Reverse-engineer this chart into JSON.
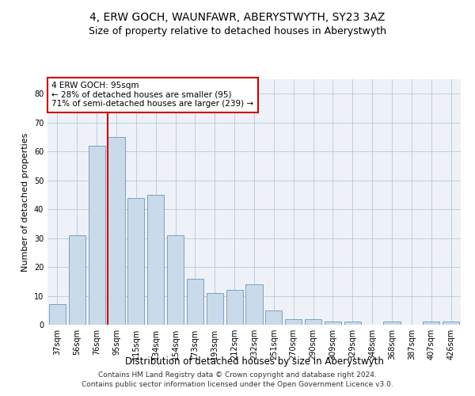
{
  "title": "4, ERW GOCH, WAUNFAWR, ABERYSTWYTH, SY23 3AZ",
  "subtitle": "Size of property relative to detached houses in Aberystwyth",
  "xlabel": "Distribution of detached houses by size in Aberystwyth",
  "ylabel": "Number of detached properties",
  "categories": [
    "37sqm",
    "56sqm",
    "76sqm",
    "95sqm",
    "115sqm",
    "134sqm",
    "154sqm",
    "173sqm",
    "193sqm",
    "212sqm",
    "232sqm",
    "251sqm",
    "270sqm",
    "290sqm",
    "309sqm",
    "329sqm",
    "348sqm",
    "368sqm",
    "387sqm",
    "407sqm",
    "426sqm"
  ],
  "values": [
    7,
    31,
    62,
    65,
    44,
    45,
    31,
    16,
    11,
    12,
    14,
    5,
    2,
    2,
    1,
    1,
    0,
    1,
    0,
    1,
    1
  ],
  "bar_color": "#c9daea",
  "bar_edge_color": "#7ca0be",
  "red_line_index": 3,
  "red_line_color": "#cc0000",
  "annotation_text": "4 ERW GOCH: 95sqm\n← 28% of detached houses are smaller (95)\n71% of semi-detached houses are larger (239) →",
  "annotation_box_color": "#ffffff",
  "annotation_box_edge": "#cc0000",
  "ylim": [
    0,
    85
  ],
  "yticks": [
    0,
    10,
    20,
    30,
    40,
    50,
    60,
    70,
    80
  ],
  "background_color": "#eef2f8",
  "footer_line1": "Contains HM Land Registry data © Crown copyright and database right 2024.",
  "footer_line2": "Contains public sector information licensed under the Open Government Licence v3.0.",
  "title_fontsize": 10,
  "subtitle_fontsize": 9,
  "xlabel_fontsize": 8.5,
  "ylabel_fontsize": 8,
  "tick_fontsize": 7,
  "annotation_fontsize": 7.5,
  "footer_fontsize": 6.5
}
